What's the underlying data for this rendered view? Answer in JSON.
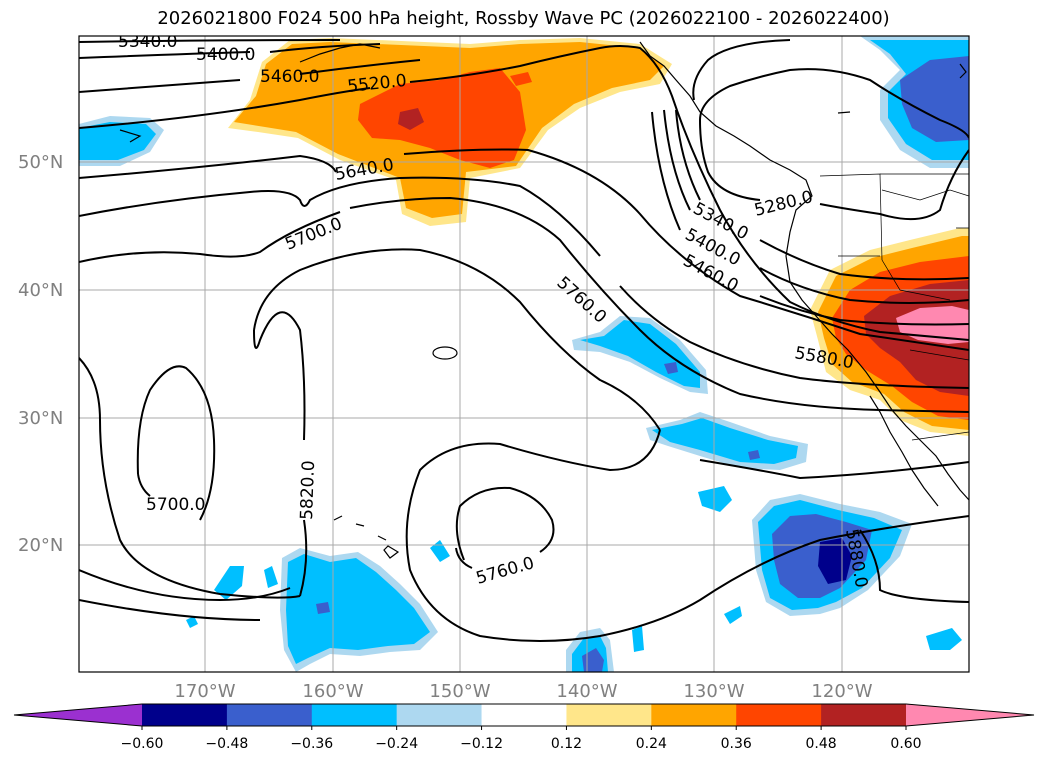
{
  "title": "2026021800 F024 500 hPa height, Rossby Wave PC (2026022100 - 2026022400)",
  "lat_labels": [
    "50°N",
    "40°N",
    "30°N",
    "20°N"
  ],
  "lon_labels": [
    "170°W",
    "160°W",
    "150°W",
    "140°W",
    "130°W",
    "120°W"
  ],
  "colorbar": {
    "ticks": [
      "−0.60",
      "−0.48",
      "−0.36",
      "−0.24",
      "−0.12",
      "0.12",
      "0.24",
      "0.36",
      "0.48",
      "0.60"
    ],
    "colors": [
      "#9b30d0",
      "#00008b",
      "#3a5fcd",
      "#00bfff",
      "#add8f0",
      "#ffffff",
      "#ffe68a",
      "#ffa500",
      "#ff4500",
      "#b22222",
      "#ff88b0"
    ]
  },
  "contour_labels": {
    "c5340a": "5340.0",
    "c5400a": "5400.0",
    "c5460a": "5460.0",
    "c5520": "5520.0",
    "c5640": "5640.0",
    "c5700a": "5700.0",
    "c5340b": "5340.0",
    "c5400b": "5400.0",
    "c5460b": "5460.0",
    "c5280": "5280.0",
    "c5760a": "5760.0",
    "c5580": "5580.0",
    "c5700b": "5700.0",
    "c5820": "5820.0",
    "c5760b": "5760.0",
    "c5880": "5880.0"
  }
}
